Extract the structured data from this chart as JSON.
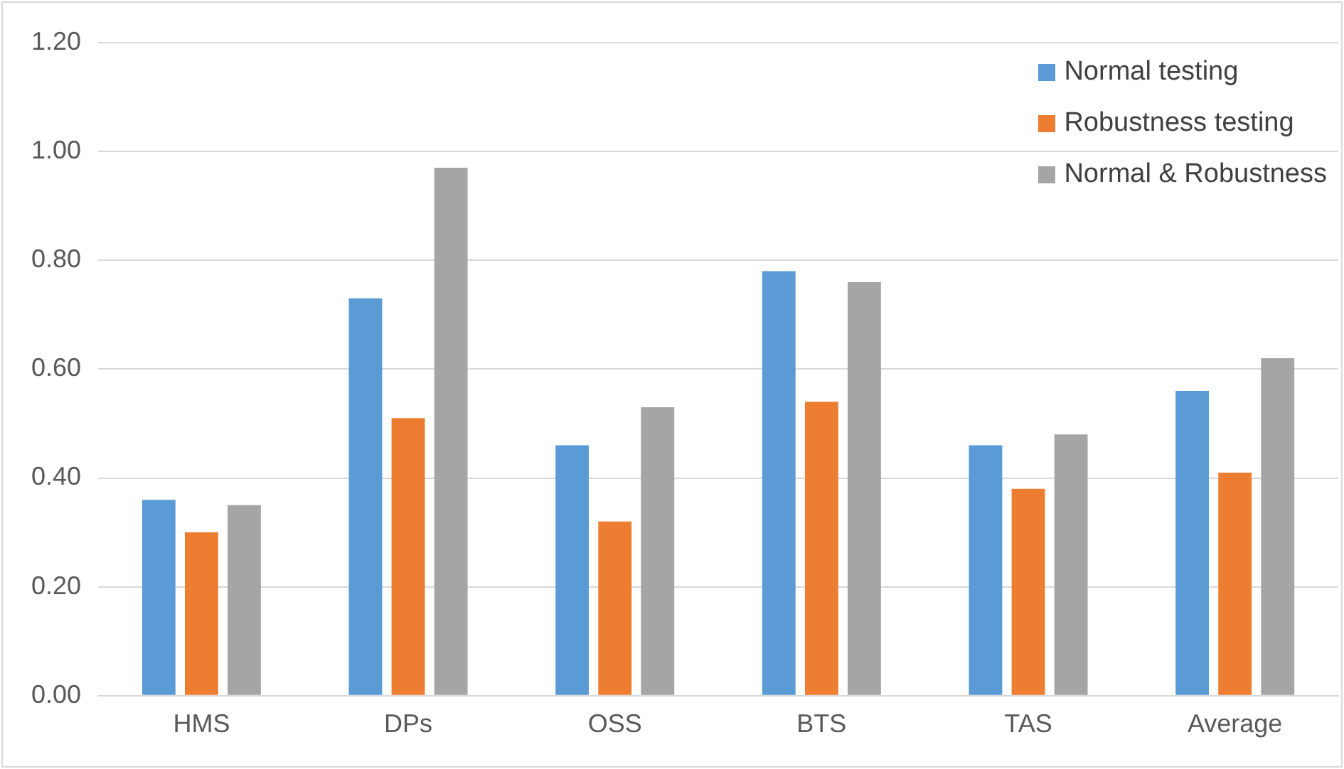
{
  "chart_data": {
    "type": "bar",
    "categories": [
      "HMS",
      "DPs",
      "OSS",
      "BTS",
      "TAS",
      "Average"
    ],
    "series": [
      {
        "name": "Normal testing",
        "color": "#5b9bd5",
        "values": [
          0.36,
          0.73,
          0.46,
          0.78,
          0.46,
          0.56
        ]
      },
      {
        "name": "Robustness testing",
        "color": "#ed7d31",
        "values": [
          0.3,
          0.51,
          0.32,
          0.54,
          0.38,
          0.41
        ]
      },
      {
        "name": "Normal & Robustness",
        "color": "#a5a5a5",
        "values": [
          0.35,
          0.97,
          0.53,
          0.76,
          0.48,
          0.62
        ]
      }
    ],
    "ylim": [
      0,
      1.2
    ],
    "yticks": [
      {
        "value": 0,
        "label": "0.00"
      },
      {
        "value": 0.2,
        "label": "0.20"
      },
      {
        "value": 0.4,
        "label": "0.40"
      },
      {
        "value": 0.6,
        "label": "0.60"
      },
      {
        "value": 0.8,
        "label": "0.80"
      },
      {
        "value": 1,
        "label": "1.00"
      },
      {
        "value": 1.2,
        "label": "1.20"
      }
    ],
    "grid": "y",
    "legend": "top right"
  }
}
